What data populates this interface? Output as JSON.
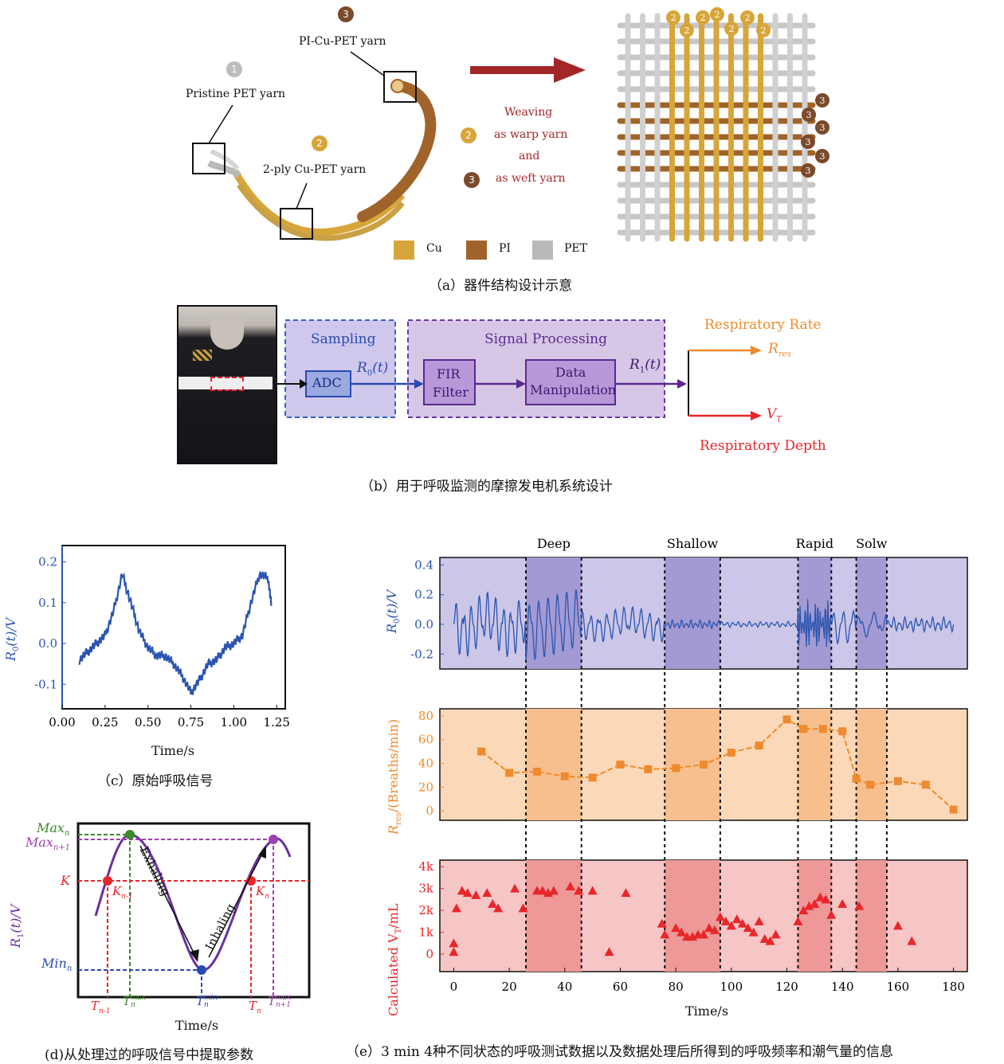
{
  "panel_a": {
    "caption": "（a）器件结构设计示意",
    "labels": {
      "pristine": "Pristine PET yarn",
      "two_ply": "2-ply Cu-PET yarn",
      "pi_cu_pet": "PI-Cu-PET yarn",
      "weave_line1": "Weaving",
      "weave_line2": "as warp yarn",
      "weave_line3": "and",
      "weave_line4": "as weft yarn"
    },
    "badges": {
      "one": "1",
      "two": "2",
      "three": "3"
    },
    "legend": [
      "Cu",
      "PI",
      "PET"
    ],
    "colors": {
      "cu": "#d7a63a",
      "pi": "#a0642a",
      "pet": "#b9b9b9",
      "arrow": "#a32628",
      "badge2": "#d7a63a",
      "badge3": "#7a4a2a",
      "badge1": "#bdbdbd"
    }
  },
  "panel_b": {
    "caption": "（b）用于呼吸监测的摩擦发电机系统设计",
    "sampling": "Sampling",
    "signal_processing": "Signal Processing",
    "adc": "ADC",
    "fir1": "FIR",
    "fir2": "Filter",
    "dm1": "Data",
    "dm2": "Manipulation",
    "r0": "R",
    "r0_sub": "0",
    "r0_arg": "(t)",
    "r1": "R",
    "r1_sub": "1",
    "r1_arg": "(t)",
    "rate_label": "Respiratory Rate",
    "depth_label": "Respiratory Depth",
    "rres": "R",
    "rres_sub": "res",
    "vt": "V",
    "vt_sub": "T"
  },
  "panel_c": {
    "caption": "（c）原始呼吸信号",
    "xlabel": "Time/s",
    "ylabel": "R",
    "ylabel_sub": "0",
    "ylabel_rest": "(t)/V",
    "chart_data": {
      "type": "line",
      "x": [
        0.1,
        0.15,
        0.2,
        0.25,
        0.3,
        0.35,
        0.4,
        0.45,
        0.5,
        0.55,
        0.6,
        0.65,
        0.7,
        0.75,
        0.8,
        0.85,
        0.9,
        0.95,
        1.0,
        1.05,
        1.1,
        1.15,
        1.2,
        1.22
      ],
      "y": [
        -0.04,
        -0.02,
        0.0,
        0.02,
        0.08,
        0.17,
        0.1,
        0.03,
        -0.01,
        -0.03,
        -0.03,
        -0.05,
        -0.08,
        -0.12,
        -0.09,
        -0.05,
        -0.04,
        -0.01,
        0.0,
        0.02,
        0.1,
        0.17,
        0.16,
        0.09
      ],
      "xticks": [
        "0.00",
        "0.25",
        "0.50",
        "0.75",
        "1.00",
        "1.25"
      ],
      "yticks": [
        "0.2",
        "0.1",
        "0.0",
        "-0.1"
      ],
      "xlim": [
        0.0,
        1.3
      ],
      "ylim": [
        -0.16,
        0.24
      ],
      "color": "#2a55b0"
    }
  },
  "panel_d": {
    "caption": "(d)从处理过的呼吸信号中提取参数",
    "xlabel": "Time/s",
    "ylabel": "R",
    "ylabel_sub": "1",
    "ylabel_rest": "(t)/V",
    "max_n": "Max",
    "max_n_sub": "n",
    "max_n1": "Max",
    "max_n1_sub": "n+1",
    "k": "K",
    "min_n": "Min",
    "min_n_sub": "n",
    "exhaling": "Exhaling",
    "inhaling": "Inhaling",
    "kn1": "K",
    "kn1_sub": "n-1",
    "kn": "K",
    "kn_sub": "n",
    "t_n1": "T",
    "t_n1_sub": "n-1",
    "t_nmax": "T",
    "t_nmax_sup": "max",
    "t_nmax_sub": "n",
    "t_nmin": "T",
    "t_nmin_sup": "min",
    "t_nmin_sub": "n",
    "t_n": "T",
    "t_n_sub": "n",
    "t_n1max": "T",
    "t_n1max_sup": "max",
    "t_n1max_sub": "n+1"
  },
  "panel_e": {
    "caption": "（e）3 min 4种不同状态的呼吸测试数据以及数据处理后所得到的呼吸频率和潮气量的信息",
    "states": [
      "Deep",
      "Shallow",
      "Rapid",
      "Solw"
    ],
    "xlabel": "Time/s",
    "xticks": [
      "0",
      "20",
      "40",
      "60",
      "80",
      "100",
      "120",
      "140",
      "160",
      "180"
    ],
    "top": {
      "ylabel": "R",
      "ylabel_sub": "0",
      "ylabel_rest": "(t)/V",
      "yticks": [
        "0.4",
        "0.2",
        "0.0",
        "-0.2"
      ]
    },
    "mid": {
      "ylabel": "R",
      "ylabel_sub": "res",
      "ylabel_rest": "/(Breaths/min)",
      "yticks": [
        "80",
        "60",
        "40",
        "20",
        "0"
      ]
    },
    "bot": {
      "ylabel": "Calculated V",
      "ylabel_sub": "T",
      "ylabel_rest": "/mL",
      "yticks": [
        "4k",
        "3k",
        "2k",
        "1k",
        "0"
      ]
    },
    "chart_data": [
      {
        "type": "area",
        "name": "state_regions",
        "regions": [
          {
            "label": "Deep",
            "x": [
              26,
              46
            ]
          },
          {
            "label": "Shallow",
            "x": [
              76,
              96
            ]
          },
          {
            "label": "Rapid",
            "x": [
              124,
              136
            ]
          },
          {
            "label": "Solw",
            "x": [
              145,
              156
            ]
          }
        ],
        "dashed_lines_x": [
          26,
          46,
          76,
          96,
          124,
          136,
          145,
          156
        ]
      },
      {
        "type": "line",
        "name": "R_res",
        "x": [
          10,
          20,
          30,
          40,
          50,
          60,
          70,
          80,
          90,
          100,
          110,
          120,
          126,
          133,
          140,
          145,
          150,
          160,
          170,
          180
        ],
        "y": [
          50,
          32,
          33,
          29,
          28,
          39,
          35,
          36,
          39,
          49,
          55,
          77,
          69,
          69,
          67,
          27,
          22,
          25,
          22,
          1
        ],
        "xlim": [
          -5,
          185
        ],
        "ylim": [
          -8,
          86
        ],
        "color": "#ef8a2e"
      },
      {
        "type": "scatter",
        "name": "V_T",
        "x": [
          0,
          0,
          1,
          3,
          5,
          8,
          12,
          14,
          16,
          22,
          25,
          30,
          32,
          34,
          36,
          42,
          45,
          50,
          56,
          62,
          75,
          76,
          80,
          82,
          84,
          86,
          88,
          90,
          92,
          94,
          96,
          98,
          100,
          102,
          104,
          106,
          108,
          110,
          112,
          114,
          116,
          124,
          126,
          128,
          130,
          132,
          134,
          136,
          140,
          146,
          160,
          165
        ],
        "y": [
          0.5,
          0.1,
          2.1,
          2.9,
          2.8,
          2.7,
          2.8,
          2.3,
          2.1,
          3.0,
          2.1,
          2.9,
          2.9,
          2.8,
          2.9,
          3.1,
          2.9,
          2.9,
          0.1,
          2.8,
          1.4,
          0.9,
          1.2,
          1.0,
          0.8,
          0.8,
          0.9,
          0.9,
          1.2,
          1.1,
          1.7,
          1.5,
          1.3,
          1.6,
          1.4,
          1.2,
          1.0,
          1.5,
          0.7,
          0.6,
          0.9,
          1.5,
          2.0,
          2.2,
          2.3,
          2.6,
          2.5,
          1.8,
          2.3,
          2.2,
          1.3,
          0.6
        ],
        "xlim": [
          -5,
          185
        ],
        "ylim": [
          -0.8,
          4.3
        ],
        "color": "#e8262b"
      }
    ]
  }
}
